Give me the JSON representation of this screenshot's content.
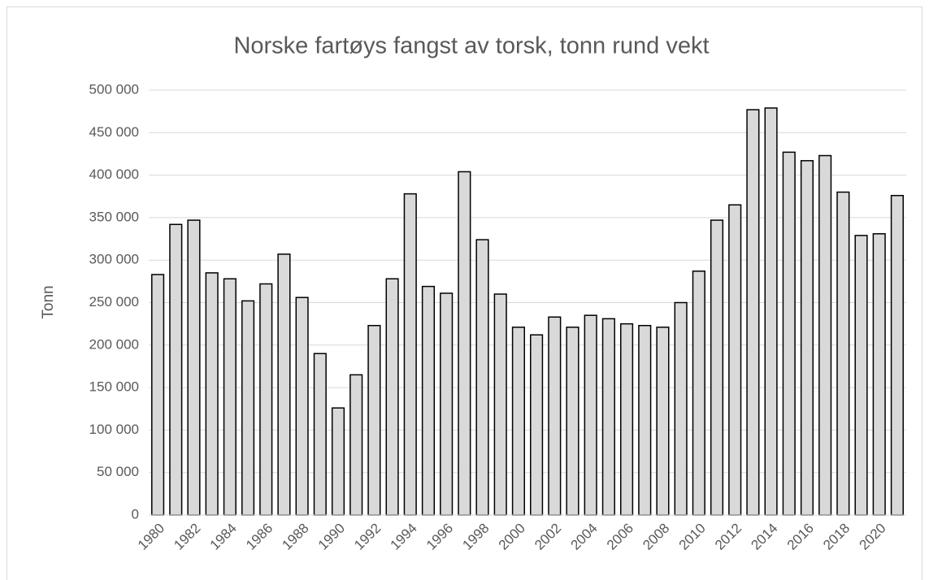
{
  "chart_data": {
    "type": "bar",
    "title": "Norske fartøys fangst av torsk, tonn rund vekt",
    "y_label": "Tonn",
    "categories": [
      "1980",
      null,
      "1982",
      null,
      "1984",
      null,
      "1986",
      null,
      "1988",
      null,
      "1990",
      null,
      "1992",
      null,
      "1994",
      null,
      "1996",
      null,
      "1998",
      null,
      "2000",
      null,
      "2002",
      null,
      "2004",
      null,
      "2006",
      null,
      "2008",
      null,
      "2010",
      null,
      "2012",
      null,
      "2014",
      null,
      "2016",
      null,
      "2018",
      null,
      "2020",
      null
    ],
    "values": [
      283000,
      342000,
      347000,
      285000,
      278000,
      252000,
      272000,
      307000,
      256000,
      190000,
      126000,
      165000,
      223000,
      278000,
      378000,
      269000,
      261000,
      404000,
      324000,
      260000,
      221000,
      212000,
      233000,
      221000,
      235000,
      231000,
      225000,
      223000,
      221000,
      250000,
      287000,
      347000,
      365000,
      477000,
      479000,
      427000,
      417000,
      423000,
      380000,
      329000,
      331000,
      376000
    ],
    "color": "#d9d9d9",
    "ylim": [
      0,
      500000
    ],
    "yticks": [
      0,
      {
        "value": 50000,
        "label": "50 000"
      },
      {
        "value": 100000,
        "label": "100 000"
      },
      {
        "value": 150000,
        "label": "150 000"
      },
      {
        "value": 200000,
        "label": "200 000"
      },
      {
        "value": 250000,
        "label": "250 000"
      },
      {
        "value": 300000,
        "label": "300 000"
      },
      {
        "value": 350000,
        "label": "350 000"
      },
      {
        "value": 400000,
        "label": "400 000"
      },
      {
        "value": 450000,
        "label": "450 000"
      },
      {
        "value": 500000,
        "label": "500 000"
      }
    ],
    "grid": true
  }
}
